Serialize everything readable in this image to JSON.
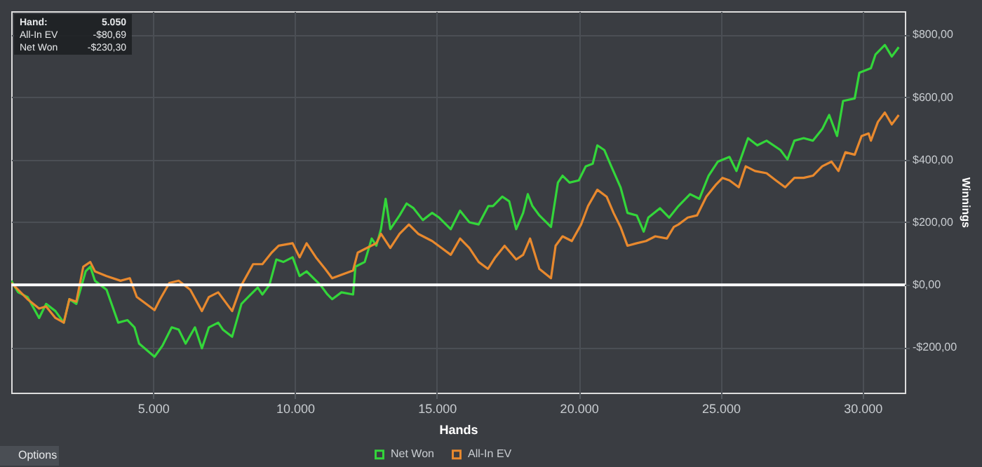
{
  "chart_data": {
    "type": "line",
    "xlabel": "Hands",
    "ylabel": "Winnings",
    "xlim": [
      0,
      31490
    ],
    "ylim": [
      -345,
      875
    ],
    "xticks": [
      {
        "value": 5000,
        "label": "5.000"
      },
      {
        "value": 10000,
        "label": "10.000"
      },
      {
        "value": 15000,
        "label": "15.000"
      },
      {
        "value": 20000,
        "label": "20.000"
      },
      {
        "value": 25000,
        "label": "25.000"
      },
      {
        "value": 30000,
        "label": "30.000"
      }
    ],
    "yticks": [
      {
        "value": -200,
        "label": "-$200,00"
      },
      {
        "value": 0,
        "label": "$0,00"
      },
      {
        "value": 200,
        "label": "$200,00"
      },
      {
        "value": 400,
        "label": "$400,00"
      },
      {
        "value": 600,
        "label": "$600,00"
      },
      {
        "value": 800,
        "label": "$800,00"
      }
    ],
    "grid": true,
    "legend": "bottom",
    "marker": "none",
    "line_style": "solid",
    "ref_lines": [
      {
        "axis": "y",
        "value": 0,
        "color": "#ffffff"
      }
    ],
    "annotations": [
      "Hand:",
      "5.050",
      "All-In EV",
      "-$80,69",
      "Net Won",
      "-$230,30",
      "Options"
    ],
    "series": [
      {
        "name": "Net Won",
        "color": "#33d63a",
        "x": [
          0,
          246,
          574,
          983,
          1229,
          1557,
          1852,
          2049,
          2295,
          2622,
          2786,
          2950,
          3360,
          3770,
          4098,
          4343,
          4507,
          5050,
          5327,
          5655,
          5900,
          6146,
          6474,
          6720,
          6966,
          7294,
          7457,
          7785,
          8113,
          8441,
          8687,
          8851,
          9096,
          9342,
          9588,
          9916,
          10162,
          10408,
          10899,
          11145,
          11309,
          11637,
          12047,
          12129,
          12456,
          12702,
          12866,
          13030,
          13194,
          13358,
          13686,
          13932,
          14177,
          14505,
          14833,
          15079,
          15489,
          15816,
          16144,
          16472,
          16814,
          16977,
          17304,
          17549,
          17794,
          18039,
          18203,
          18366,
          18611,
          19020,
          19265,
          19428,
          19673,
          20000,
          20245,
          20490,
          20654,
          20899,
          21144,
          21471,
          21716,
          22043,
          22288,
          22451,
          22860,
          23186,
          23513,
          23922,
          24248,
          24575,
          24902,
          25310,
          25555,
          25964,
          26291,
          26618,
          27108,
          27353,
          27598,
          27925,
          28252,
          28579,
          28824,
          29102,
          29314,
          29723,
          29886,
          30294,
          30458,
          30785,
          31030,
          31275
        ],
        "values": [
          13,
          -24,
          -39,
          -106,
          -61,
          -84,
          -121,
          -46,
          -61,
          43,
          58,
          13,
          -16,
          -121,
          -113,
          -136,
          -188,
          -230,
          -195,
          -136,
          -143,
          -188,
          -136,
          -203,
          -136,
          -121,
          -143,
          -166,
          -61,
          -31,
          -9,
          -31,
          -1,
          81,
          73,
          88,
          28,
          43,
          -1,
          -31,
          -46,
          -24,
          -31,
          58,
          73,
          148,
          125,
          178,
          275,
          178,
          222,
          260,
          245,
          207,
          230,
          215,
          178,
          237,
          200,
          193,
          252,
          252,
          282,
          267,
          178,
          230,
          290,
          252,
          222,
          185,
          327,
          349,
          327,
          334,
          379,
          387,
          446,
          431,
          379,
          312,
          230,
          222,
          170,
          215,
          245,
          215,
          252,
          290,
          275,
          349,
          394,
          409,
          364,
          469,
          446,
          461,
          431,
          401,
          461,
          469,
          461,
          498,
          543,
          476,
          588,
          596,
          678,
          693,
          737,
          767,
          730,
          760
        ]
      },
      {
        "name": "All-In EV",
        "color": "#e8892e",
        "x": [
          0,
          246,
          574,
          983,
          1229,
          1557,
          1852,
          2049,
          2295,
          2540,
          2786,
          2950,
          3360,
          3852,
          4180,
          4425,
          5050,
          5245,
          5573,
          5900,
          6310,
          6720,
          6966,
          7294,
          7785,
          8113,
          8523,
          8851,
          9178,
          9424,
          9916,
          10162,
          10408,
          10736,
          11063,
          11309,
          12047,
          12211,
          12538,
          12866,
          13030,
          13358,
          13686,
          14013,
          14341,
          14833,
          15161,
          15489,
          15816,
          16144,
          16472,
          16800,
          17059,
          17386,
          17794,
          18039,
          18284,
          18611,
          19020,
          19183,
          19428,
          19755,
          20082,
          20327,
          20654,
          20981,
          21226,
          21471,
          21716,
          22043,
          22369,
          22696,
          23105,
          23350,
          23513,
          23840,
          24167,
          24494,
          24820,
          25065,
          25310,
          25637,
          25882,
          26209,
          26618,
          26945,
          27271,
          27598,
          27925,
          28252,
          28579,
          28906,
          29150,
          29396,
          29723,
          29968,
          30213,
          30294,
          30540,
          30785,
          31030,
          31275
        ],
        "values": [
          6,
          -16,
          -46,
          -76,
          -69,
          -106,
          -121,
          -46,
          -54,
          58,
          73,
          43,
          28,
          13,
          21,
          -39,
          -81,
          -46,
          6,
          13,
          -16,
          -84,
          -39,
          -24,
          -84,
          -1,
          66,
          66,
          103,
          125,
          133,
          88,
          133,
          88,
          51,
          21,
          46,
          103,
          118,
          133,
          163,
          118,
          163,
          193,
          163,
          140,
          118,
          96,
          148,
          118,
          73,
          51,
          88,
          125,
          81,
          96,
          148,
          51,
          21,
          125,
          155,
          140,
          193,
          252,
          304,
          282,
          230,
          185,
          125,
          133,
          140,
          155,
          148,
          185,
          193,
          215,
          222,
          282,
          319,
          342,
          334,
          312,
          379,
          364,
          357,
          334,
          312,
          342,
          342,
          349,
          379,
          394,
          364,
          424,
          416,
          476,
          484,
          461,
          521,
          551,
          513,
          543
        ]
      }
    ]
  }
}
